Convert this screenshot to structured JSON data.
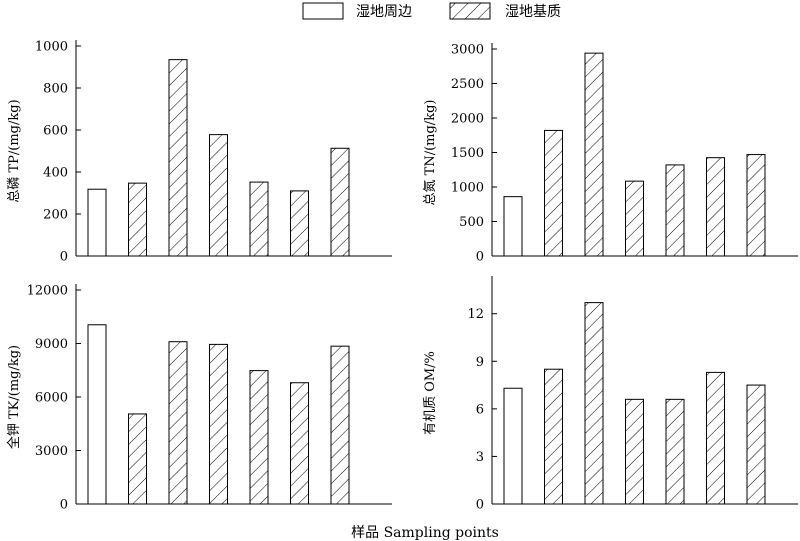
{
  "legend": {
    "items": [
      {
        "label": "湿地周边",
        "pattern": "none"
      },
      {
        "label": "湿地基质",
        "pattern": "hatch"
      }
    ]
  },
  "xlabel": "样品 Sampling points",
  "colors": {
    "bar_fill": "#ffffff",
    "hatch": "#000000",
    "stroke": "#000000"
  },
  "chart_data": [
    {
      "type": "bar",
      "ylabel": "总磷 TP/(mg/kg)",
      "ylim": [
        0,
        1000
      ],
      "yticks": [
        0,
        200,
        400,
        600,
        800,
        1000
      ],
      "series": [
        {
          "name": "湿地周边",
          "values": [
            318,
            null,
            null,
            null,
            null,
            null,
            null
          ]
        },
        {
          "name": "湿地基质",
          "values": [
            null,
            347,
            935,
            578,
            352,
            310,
            513
          ]
        }
      ]
    },
    {
      "type": "bar",
      "ylabel": "总氮 TN/(mg/kg)",
      "ylim": [
        0,
        3000
      ],
      "yticks": [
        0,
        500,
        1000,
        1500,
        2000,
        2500,
        3000
      ],
      "series": [
        {
          "name": "湿地周边",
          "values": [
            860,
            null,
            null,
            null,
            null,
            null,
            null
          ]
        },
        {
          "name": "湿地基质",
          "values": [
            null,
            1820,
            2940,
            1085,
            1320,
            1425,
            1470
          ]
        }
      ]
    },
    {
      "type": "bar",
      "ylabel": "全钾 TK/(mg/kg)",
      "ylim": [
        0,
        12000
      ],
      "yticks": [
        0,
        3000,
        6000,
        9000,
        12000
      ],
      "series": [
        {
          "name": "湿地周边",
          "values": [
            10050,
            null,
            null,
            null,
            null,
            null,
            null
          ]
        },
        {
          "name": "湿地基质",
          "values": [
            null,
            5050,
            9100,
            8950,
            7480,
            6800,
            8850
          ]
        }
      ]
    },
    {
      "type": "bar",
      "ylabel": "有机质 OM/%",
      "ylim": [
        0,
        14
      ],
      "yticks": [
        0,
        3,
        6,
        9,
        12
      ],
      "series": [
        {
          "name": "湿地周边",
          "values": [
            7.3,
            null,
            null,
            null,
            null,
            null,
            null
          ]
        },
        {
          "name": "湿地基质",
          "values": [
            null,
            8.5,
            12.7,
            6.6,
            6.6,
            8.3,
            7.5
          ]
        }
      ]
    }
  ]
}
